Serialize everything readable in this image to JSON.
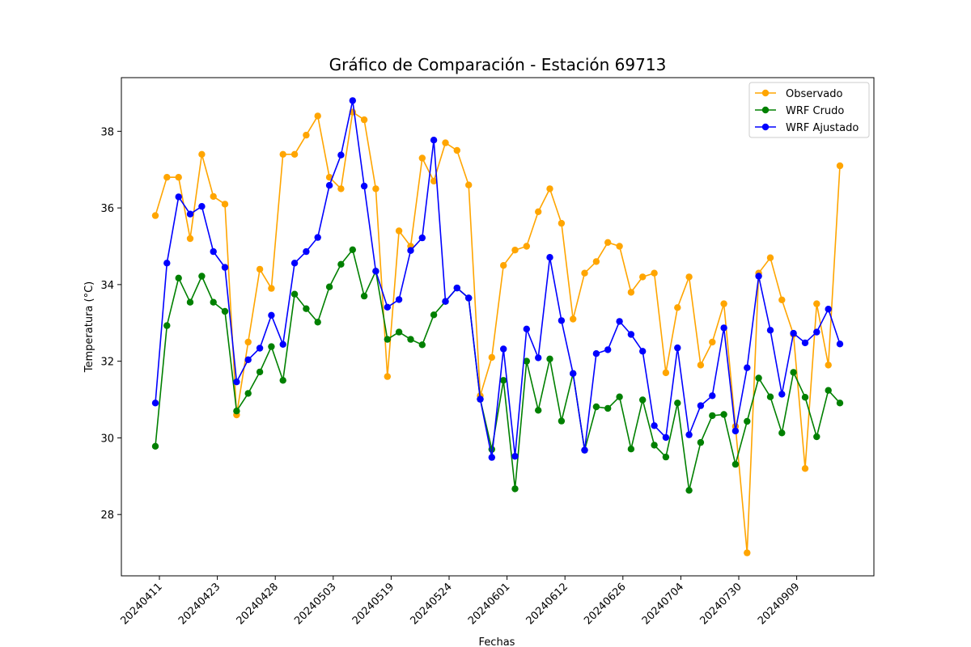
{
  "chart_data": {
    "type": "line",
    "title": "Gráfico de Comparación - Estación 69713",
    "xlabel": "Fechas",
    "ylabel": "Temperatura (°C)",
    "ylim": [
      26.4,
      39.4
    ],
    "yticks": [
      28,
      30,
      32,
      34,
      36,
      38
    ],
    "xticks": [
      "20240411",
      "20240423",
      "20240428",
      "20240503",
      "20240519",
      "20240524",
      "20240601",
      "20240612",
      "20240626",
      "20240704",
      "20240730",
      "20240909"
    ],
    "legend": "top-right",
    "grid": false,
    "series": [
      {
        "name": "Observado",
        "color": "#ffa500",
        "values": [
          35.8,
          36.8,
          36.8,
          35.2,
          37.4,
          36.3,
          36.1,
          30.6,
          32.5,
          34.4,
          33.9,
          37.4,
          37.4,
          37.9,
          38.4,
          36.8,
          36.5,
          38.5,
          38.3,
          36.5,
          31.6,
          35.4,
          35.0,
          37.3,
          36.7,
          37.7,
          37.5,
          36.6,
          31.1,
          32.1,
          34.5,
          34.9,
          35.0,
          35.9,
          36.5,
          35.6,
          33.1,
          34.3,
          34.6,
          35.1,
          35.0,
          33.8,
          34.2,
          34.3,
          31.7,
          33.4,
          34.2,
          31.9,
          32.5,
          33.5,
          30.3,
          27.0,
          34.3,
          34.7,
          33.6,
          32.7,
          29.2,
          33.5,
          31.9,
          37.1
        ]
      },
      {
        "name": "WRF Crudo",
        "color": "#008000",
        "values": [
          29.78,
          32.93,
          34.17,
          33.54,
          34.22,
          33.54,
          33.3,
          30.7,
          31.16,
          31.72,
          32.38,
          31.5,
          33.75,
          33.37,
          33.02,
          33.94,
          34.53,
          34.91,
          33.7,
          34.35,
          32.57,
          32.76,
          32.57,
          32.43,
          33.21,
          33.56,
          33.91,
          33.65,
          31.01,
          29.7,
          31.5,
          28.67,
          32.0,
          30.72,
          32.06,
          30.44,
          31.68,
          29.68,
          30.81,
          30.77,
          31.07,
          29.71,
          30.99,
          29.81,
          29.5,
          30.91,
          28.63,
          29.88,
          30.58,
          30.61,
          29.31,
          30.43,
          31.56,
          31.07,
          30.13,
          31.71,
          31.06,
          30.03,
          31.24,
          30.91
        ]
      },
      {
        "name": "WRF Ajustado",
        "color": "#0000ff",
        "values": [
          30.91,
          34.56,
          36.29,
          35.84,
          36.04,
          34.86,
          34.45,
          31.46,
          32.04,
          32.34,
          33.2,
          32.44,
          34.56,
          34.86,
          35.23,
          36.59,
          37.38,
          38.8,
          36.57,
          34.35,
          33.41,
          33.61,
          34.89,
          35.22,
          37.77,
          33.56,
          33.91,
          33.65,
          31.01,
          29.49,
          32.32,
          29.52,
          32.84,
          32.09,
          34.71,
          33.06,
          31.68,
          29.68,
          32.2,
          32.3,
          33.04,
          32.7,
          32.26,
          30.32,
          30.01,
          32.35,
          30.08,
          30.84,
          31.1,
          32.87,
          30.18,
          31.83,
          34.22,
          32.81,
          31.14,
          32.73,
          32.48,
          32.76,
          33.36,
          32.45
        ]
      }
    ]
  }
}
